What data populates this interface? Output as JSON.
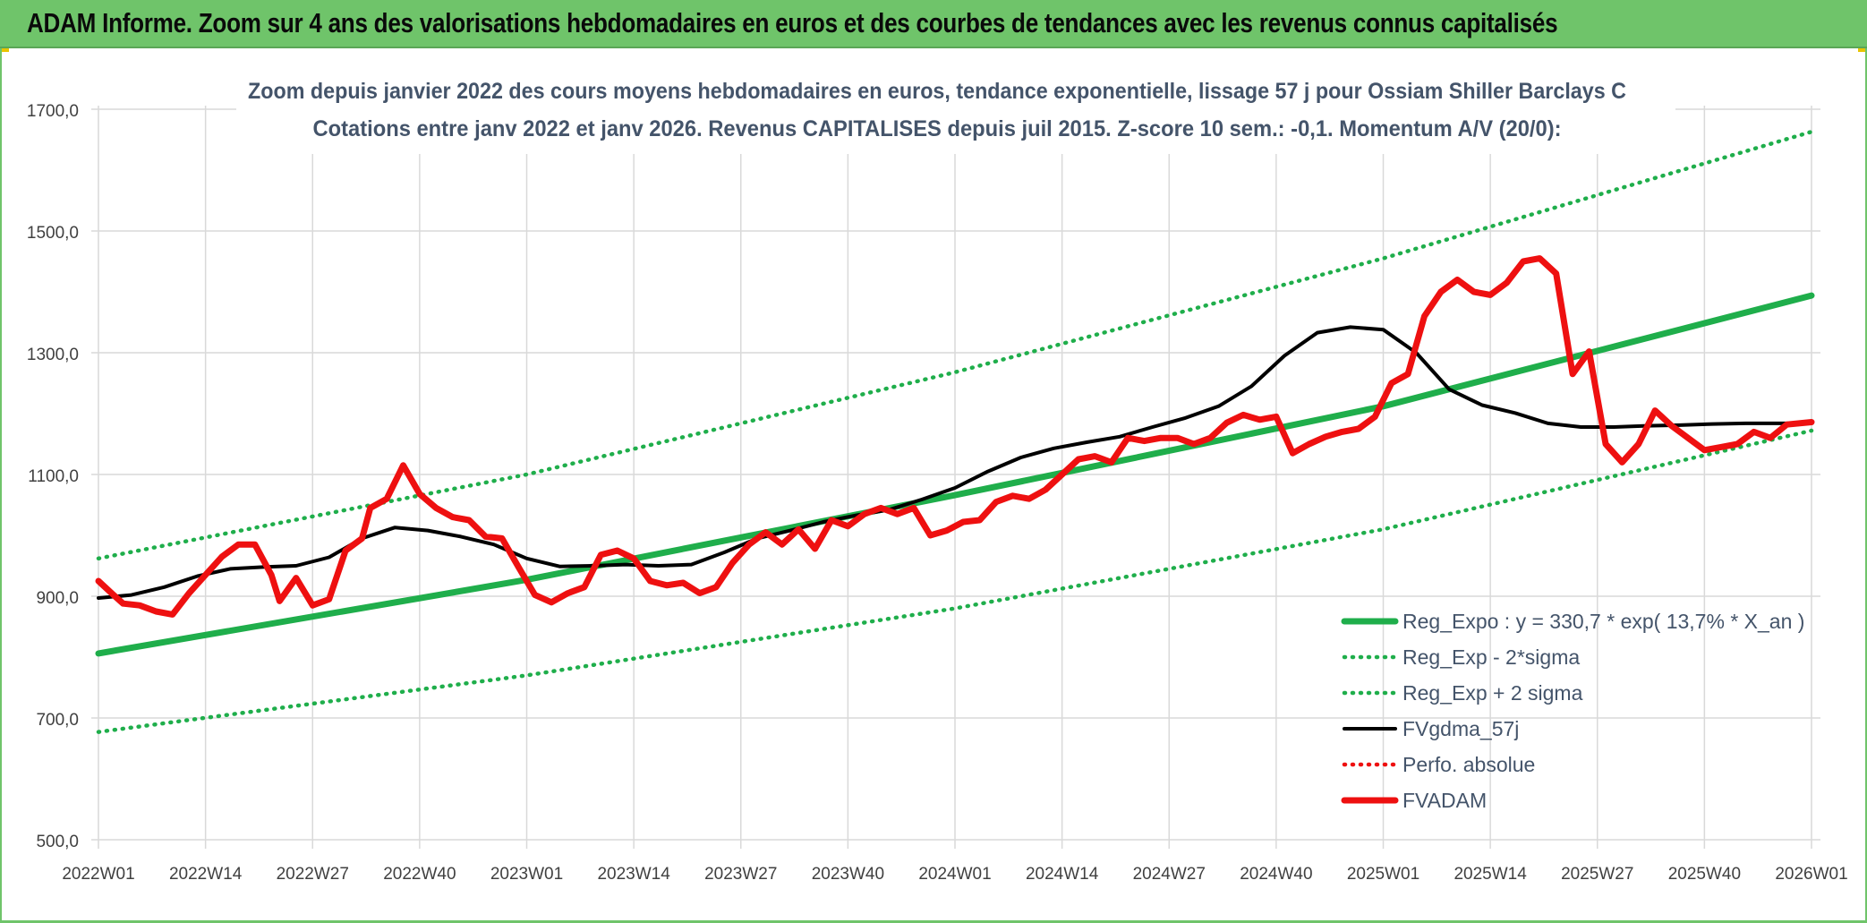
{
  "banner": {
    "title": "ADAM Informe. Zoom sur 4 ans des valorisations hebdomadaires en euros et des courbes de tendances avec les revenus connus capitalisés"
  },
  "colors": {
    "banner_bg": "#6fc46a",
    "trend_green": "#1fae4b",
    "moving_average": "#000000",
    "price_red": "#ee1010",
    "grid": "#d9d9d9",
    "title_text": "#44546a",
    "axis_text": "#404040"
  },
  "chart_data": {
    "type": "line",
    "title": "Zoom depuis janvier 2022 des cours moyens hebdomadaires en euros, tendance exponentielle, lissage 57 j pour Ossiam Shiller Barclays C",
    "subtitle": "Cotations entre janv 2022 et janv 2026. Revenus CAPITALISES depuis juil 2015. Z-score 10 sem.: -0,1. Momentum A/V (20/0):",
    "xlabel": "",
    "ylabel": "",
    "ylim": [
      500,
      1700
    ],
    "y_ticks": [
      "500,0",
      "700,0",
      "900,0",
      "1100,0",
      "1300,0",
      "1500,0",
      "1700,0"
    ],
    "y_tick_values": [
      500,
      700,
      900,
      1100,
      1300,
      1500,
      1700
    ],
    "x_ticks": [
      "2022W01",
      "2022W14",
      "2022W27",
      "2022W40",
      "2023W01",
      "2023W14",
      "2023W27",
      "2023W40",
      "2024W01",
      "2024W14",
      "2024W27",
      "2024W40",
      "2025W01",
      "2025W14",
      "2025W27",
      "2025W40",
      "2026W01"
    ],
    "x_unit": "week index (0 = 2022W01, 13 weeks per tick)",
    "x_range": [
      0,
      208
    ],
    "grid": true,
    "legend_position": "bottom-right",
    "series": [
      {
        "name": "Reg_Expo : y = 330,7 * exp( 13,7% *  X_an )",
        "style": "solid-thick",
        "color": "#1fae4b",
        "x": [
          0,
          52,
          104,
          156,
          208
        ],
        "values": [
          806,
          927,
          1066,
          1212,
          1394
        ]
      },
      {
        "name": "Reg_Exp - 2*sigma",
        "style": "dotted",
        "color": "#1fae4b",
        "x": [
          0,
          52,
          104,
          156,
          208
        ],
        "values": [
          677,
          770,
          880,
          1010,
          1172
        ]
      },
      {
        "name": "Reg_Exp + 2 sigma",
        "style": "dotted",
        "color": "#1fae4b",
        "x": [
          0,
          52,
          104,
          156,
          208
        ],
        "values": [
          962,
          1100,
          1268,
          1455,
          1663
        ]
      },
      {
        "name": "FVgdma_57j",
        "style": "solid",
        "color": "#000000",
        "x": [
          0,
          4,
          8,
          12,
          16,
          20,
          24,
          28,
          32,
          36,
          40,
          44,
          48,
          52,
          56,
          60,
          64,
          68,
          72,
          76,
          80,
          84,
          88,
          92,
          96,
          100,
          104,
          108,
          112,
          116,
          120,
          124,
          128,
          132,
          136,
          140,
          144,
          148,
          152,
          156,
          160,
          164,
          168,
          172,
          176,
          180,
          184,
          188,
          192,
          196,
          200,
          204,
          208
        ],
        "values": [
          897,
          902,
          915,
          933,
          945,
          948,
          950,
          964,
          995,
          1013,
          1008,
          998,
          985,
          962,
          949,
          950,
          952,
          950,
          952,
          972,
          995,
          1008,
          1022,
          1033,
          1042,
          1059,
          1078,
          1105,
          1128,
          1143,
          1153,
          1162,
          1178,
          1193,
          1212,
          1245,
          1295,
          1333,
          1342,
          1338,
          1300,
          1240,
          1214,
          1201,
          1184,
          1178,
          1178,
          1180,
          1181,
          1183,
          1184,
          1184,
          1184
        ]
      },
      {
        "name": "Perfo. absolue",
        "style": "dotted",
        "color": "#ee1010",
        "x": [],
        "values": []
      },
      {
        "name": "FVADAM",
        "style": "solid-thick",
        "color": "#ee1010",
        "x": [
          0,
          2,
          3,
          5,
          7,
          9,
          11,
          13,
          15,
          17,
          19,
          21,
          22,
          24,
          26,
          28,
          30,
          32,
          33,
          35,
          37,
          39,
          41,
          43,
          45,
          47,
          49,
          51,
          53,
          55,
          57,
          59,
          61,
          63,
          65,
          67,
          69,
          71,
          73,
          75,
          77,
          79,
          81,
          83,
          85,
          87,
          89,
          91,
          93,
          95,
          97,
          99,
          101,
          103,
          105,
          107,
          109,
          111,
          113,
          115,
          117,
          119,
          121,
          123,
          125,
          127,
          129,
          131,
          133,
          135,
          137,
          139,
          141,
          143,
          145,
          147,
          149,
          151,
          153,
          155,
          157,
          159,
          161,
          163,
          165,
          167,
          169,
          171,
          173,
          175,
          177,
          179,
          181,
          183,
          185,
          187,
          189,
          191,
          193,
          195,
          197,
          199,
          201,
          203,
          205,
          208
        ],
        "values": [
          925,
          900,
          888,
          885,
          875,
          870,
          905,
          935,
          965,
          985,
          985,
          935,
          892,
          930,
          885,
          895,
          975,
          995,
          1045,
          1060,
          1115,
          1068,
          1045,
          1030,
          1025,
          998,
          995,
          948,
          902,
          890,
          905,
          915,
          968,
          975,
          962,
          925,
          918,
          922,
          905,
          915,
          955,
          985,
          1005,
          985,
          1010,
          978,
          1025,
          1015,
          1035,
          1045,
          1035,
          1045,
          1000,
          1008,
          1022,
          1025,
          1055,
          1065,
          1060,
          1075,
          1100,
          1125,
          1130,
          1120,
          1160,
          1155,
          1160,
          1160,
          1150,
          1160,
          1185,
          1198,
          1190,
          1195,
          1135,
          1150,
          1162,
          1170,
          1175,
          1195,
          1250,
          1265,
          1360,
          1400,
          1420,
          1400,
          1395,
          1415,
          1450,
          1455,
          1430,
          1265,
          1302,
          1150,
          1120,
          1150,
          1205,
          1180,
          1160,
          1140,
          1145,
          1150,
          1170,
          1160,
          1182,
          1186
        ]
      }
    ]
  }
}
